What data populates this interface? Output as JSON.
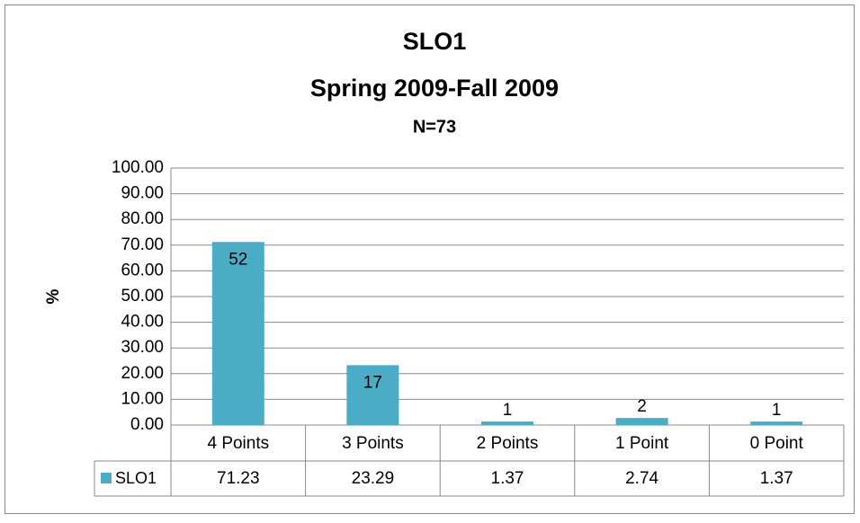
{
  "chart_data": {
    "type": "bar",
    "title": [
      "SLO1",
      "Spring 2009-Fall 2009",
      "N=73"
    ],
    "y_label": "%",
    "categories": [
      "4 Points",
      "3 Points",
      "2 Points",
      "1 Point",
      "0 Point"
    ],
    "series": [
      {
        "name": "SLO1",
        "color": "#4bacc6",
        "values": [
          71.23,
          23.29,
          1.37,
          2.74,
          1.37
        ]
      }
    ],
    "data_labels": [
      52,
      17,
      1,
      2,
      1
    ],
    "ylim": [
      0,
      100
    ],
    "yticks": [
      {
        "value": 0,
        "label": "0.00"
      },
      {
        "value": 10,
        "label": "10.00"
      },
      {
        "value": 20,
        "label": "20.00"
      },
      {
        "value": 30,
        "label": "30.00"
      },
      {
        "value": 40,
        "label": "40.00"
      },
      {
        "value": 50,
        "label": "50.00"
      },
      {
        "value": 60,
        "label": "60.00"
      },
      {
        "value": 70,
        "label": "70.00"
      },
      {
        "value": 80,
        "label": "80.00"
      },
      {
        "value": 90,
        "label": "90.00"
      },
      {
        "value": 100,
        "label": "100.00"
      }
    ],
    "grid": true
  }
}
